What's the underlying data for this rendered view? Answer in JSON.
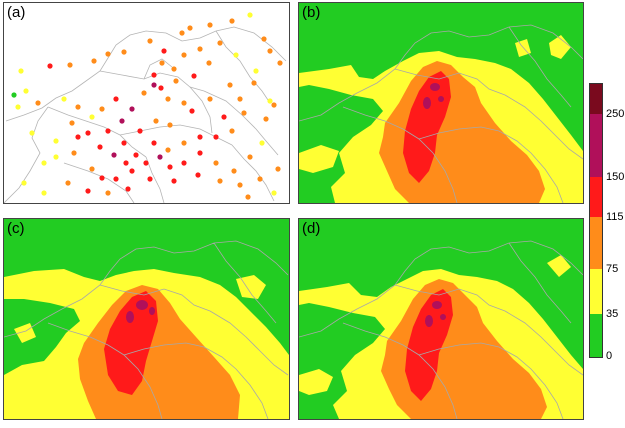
{
  "panels": [
    {
      "label": "(a)",
      "type": "stations"
    },
    {
      "label": "(b)",
      "type": "field"
    },
    {
      "label": "(c)",
      "type": "field"
    },
    {
      "label": "(d)",
      "type": "field"
    }
  ],
  "colorbar": {
    "ticks": [
      "250",
      "150",
      "115",
      "75",
      "35",
      "0"
    ],
    "levels": [
      0,
      35,
      75,
      115,
      150,
      250,
      300
    ],
    "colors": {
      "0-35": "#22cc22",
      "35-75": "#ffff33",
      "75-115": "#ff8c1a",
      "115-150": "#ff1a1a",
      "150-250": "#b0105a",
      "250-300": "#7a0a1e"
    }
  }
}
